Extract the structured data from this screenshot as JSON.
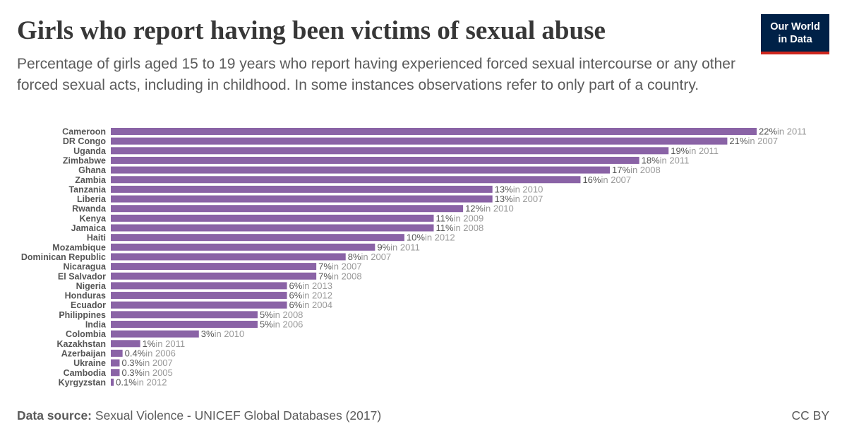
{
  "title": "Girls who report having been victims of sexual abuse",
  "subtitle": "Percentage of girls aged 15 to 19 years who report having experienced forced sexual intercourse or any other forced sexual acts, including in childhood. In some instances observations refer to only part of a country.",
  "logo": {
    "line1": "Our World",
    "line2": "in Data"
  },
  "footer": {
    "source_label": "Data source:",
    "source_text": "Sexual Violence - UNICEF Global Databases (2017)",
    "license": "CC BY"
  },
  "colors": {
    "bar": "#8a63a6",
    "label": "#555555",
    "year": "#999999"
  },
  "chart_data": {
    "type": "bar",
    "orientation": "horizontal",
    "xlim": [
      0,
      22
    ],
    "categories": [
      "Cameroon",
      "DR Congo",
      "Uganda",
      "Zimbabwe",
      "Ghana",
      "Zambia",
      "Tanzania",
      "Liberia",
      "Rwanda",
      "Kenya",
      "Jamaica",
      "Haiti",
      "Mozambique",
      "Dominican Republic",
      "Nicaragua",
      "El Salvador",
      "Nigeria",
      "Honduras",
      "Ecuador",
      "Philippines",
      "India",
      "Colombia",
      "Kazakhstan",
      "Azerbaijan",
      "Ukraine",
      "Cambodia",
      "Kyrgyzstan"
    ],
    "values": [
      22,
      21,
      19,
      18,
      17,
      16,
      13,
      13,
      12,
      11,
      11,
      10,
      9,
      8,
      7,
      7,
      6,
      6,
      6,
      5,
      5,
      3,
      1,
      0.4,
      0.3,
      0.3,
      0.1
    ],
    "value_labels": [
      "22%",
      "21%",
      "19%",
      "18%",
      "17%",
      "16%",
      "13%",
      "13%",
      "12%",
      "11%",
      "11%",
      "10%",
      "9%",
      "8%",
      "7%",
      "7%",
      "6%",
      "6%",
      "6%",
      "5%",
      "5%",
      "3%",
      "1%",
      "0.4%",
      "0.3%",
      "0.3%",
      "0.1%"
    ],
    "year_labels": [
      "in 2011",
      "in 2007",
      "in 2011",
      "in 2011",
      "in 2008",
      "in 2007",
      "in 2010",
      "in 2007",
      "in 2010",
      "in 2009",
      "in 2008",
      "in 2012",
      "in 2011",
      "in 2007",
      "in 2007",
      "in 2008",
      "in 2013",
      "in 2012",
      "in 2004",
      "in 2008",
      "in 2006",
      "in 2010",
      "in 2011",
      "in 2006",
      "in 2007",
      "in 2005",
      "in 2012"
    ]
  }
}
